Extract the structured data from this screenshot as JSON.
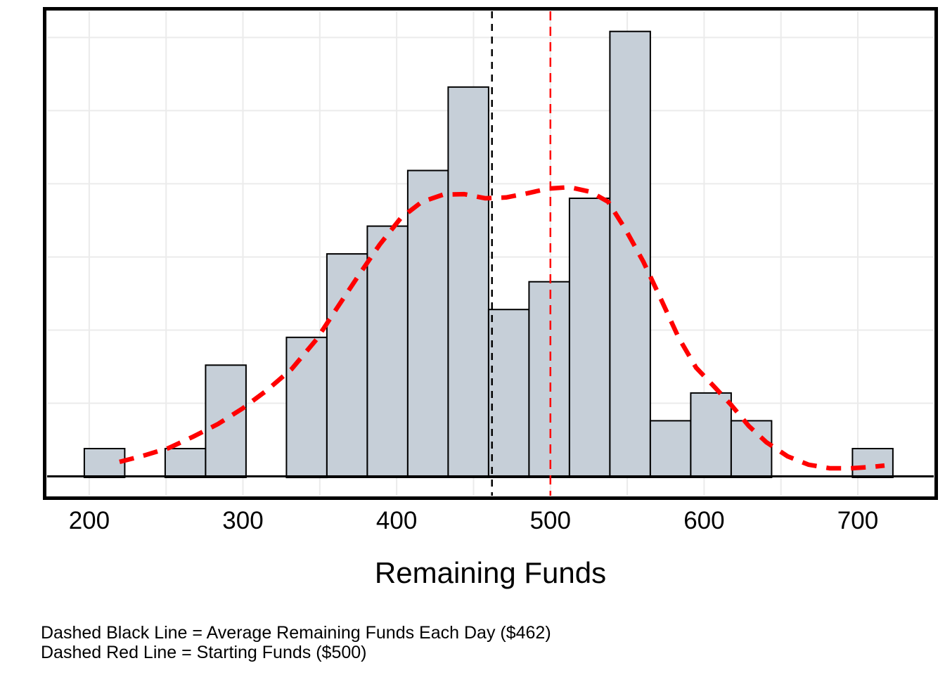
{
  "chart_data": {
    "type": "histogram",
    "title": "",
    "xlabel": "Remaining Funds",
    "ylabel": "",
    "x_ticks": [
      "200",
      "300",
      "400",
      "500",
      "600",
      "700"
    ],
    "xlim": [
      172.6,
      749.4
    ],
    "ylim_counts": [
      0,
      16.73
    ],
    "grid_on": true,
    "x_gridlines": [
      200,
      250,
      300,
      350,
      400,
      450,
      500,
      550,
      600,
      650,
      700
    ],
    "y_gridlines_counts": [
      2.63,
      5.26,
      7.89,
      10.52,
      13.15,
      15.78
    ],
    "bins": {
      "start": 196.8,
      "width": 26.3,
      "counts": [
        1,
        0,
        1,
        4,
        0,
        5,
        8,
        9,
        11,
        14,
        6,
        7,
        10,
        16,
        2,
        3,
        2,
        0,
        0,
        1
      ],
      "total_n": 100
    },
    "density_curve": [
      [
        219.7,
        0.52
      ],
      [
        235.7,
        0.75
      ],
      [
        251.7,
        1.02
      ],
      [
        267.7,
        1.43
      ],
      [
        283.7,
        1.88
      ],
      [
        299.7,
        2.44
      ],
      [
        315.7,
        3.1
      ],
      [
        331.7,
        3.86
      ],
      [
        347.8,
        4.92
      ],
      [
        361.5,
        6.08
      ],
      [
        375.2,
        7.22
      ],
      [
        388.9,
        8.33
      ],
      [
        402.7,
        9.29
      ],
      [
        416.4,
        9.87
      ],
      [
        430.1,
        10.13
      ],
      [
        443.9,
        10.15
      ],
      [
        457.6,
        10.0
      ],
      [
        471.3,
        10.03
      ],
      [
        485.0,
        10.18
      ],
      [
        498.7,
        10.35
      ],
      [
        512.4,
        10.4
      ],
      [
        526.2,
        10.23
      ],
      [
        537.6,
        9.87
      ],
      [
        549.1,
        8.86
      ],
      [
        560.5,
        7.72
      ],
      [
        571.9,
        6.38
      ],
      [
        583.4,
        4.99
      ],
      [
        594.8,
        3.91
      ],
      [
        606.2,
        3.25
      ],
      [
        617.6,
        2.57
      ],
      [
        629.1,
        1.81
      ],
      [
        640.5,
        1.23
      ],
      [
        654.3,
        0.72
      ],
      [
        668.0,
        0.42
      ],
      [
        681.7,
        0.29
      ],
      [
        695.4,
        0.29
      ],
      [
        709.2,
        0.34
      ],
      [
        717.4,
        0.39
      ]
    ],
    "vlines": [
      {
        "x": 462,
        "color": "#000000",
        "style": "dashed"
      },
      {
        "x": 500,
        "color": "#ff0000",
        "style": "dashed"
      }
    ],
    "colors": {
      "bar_fill": "#c6cfd8",
      "bar_stroke": "#000000",
      "grid": "#ebebeb",
      "curve": "#ff0000",
      "axis": "#000000",
      "text": "#000000"
    }
  },
  "caption": {
    "line1": "Dashed Black Line = Average Remaining Funds Each Day ($462)",
    "line2": "Dashed Red Line = Starting Funds ($500)"
  }
}
